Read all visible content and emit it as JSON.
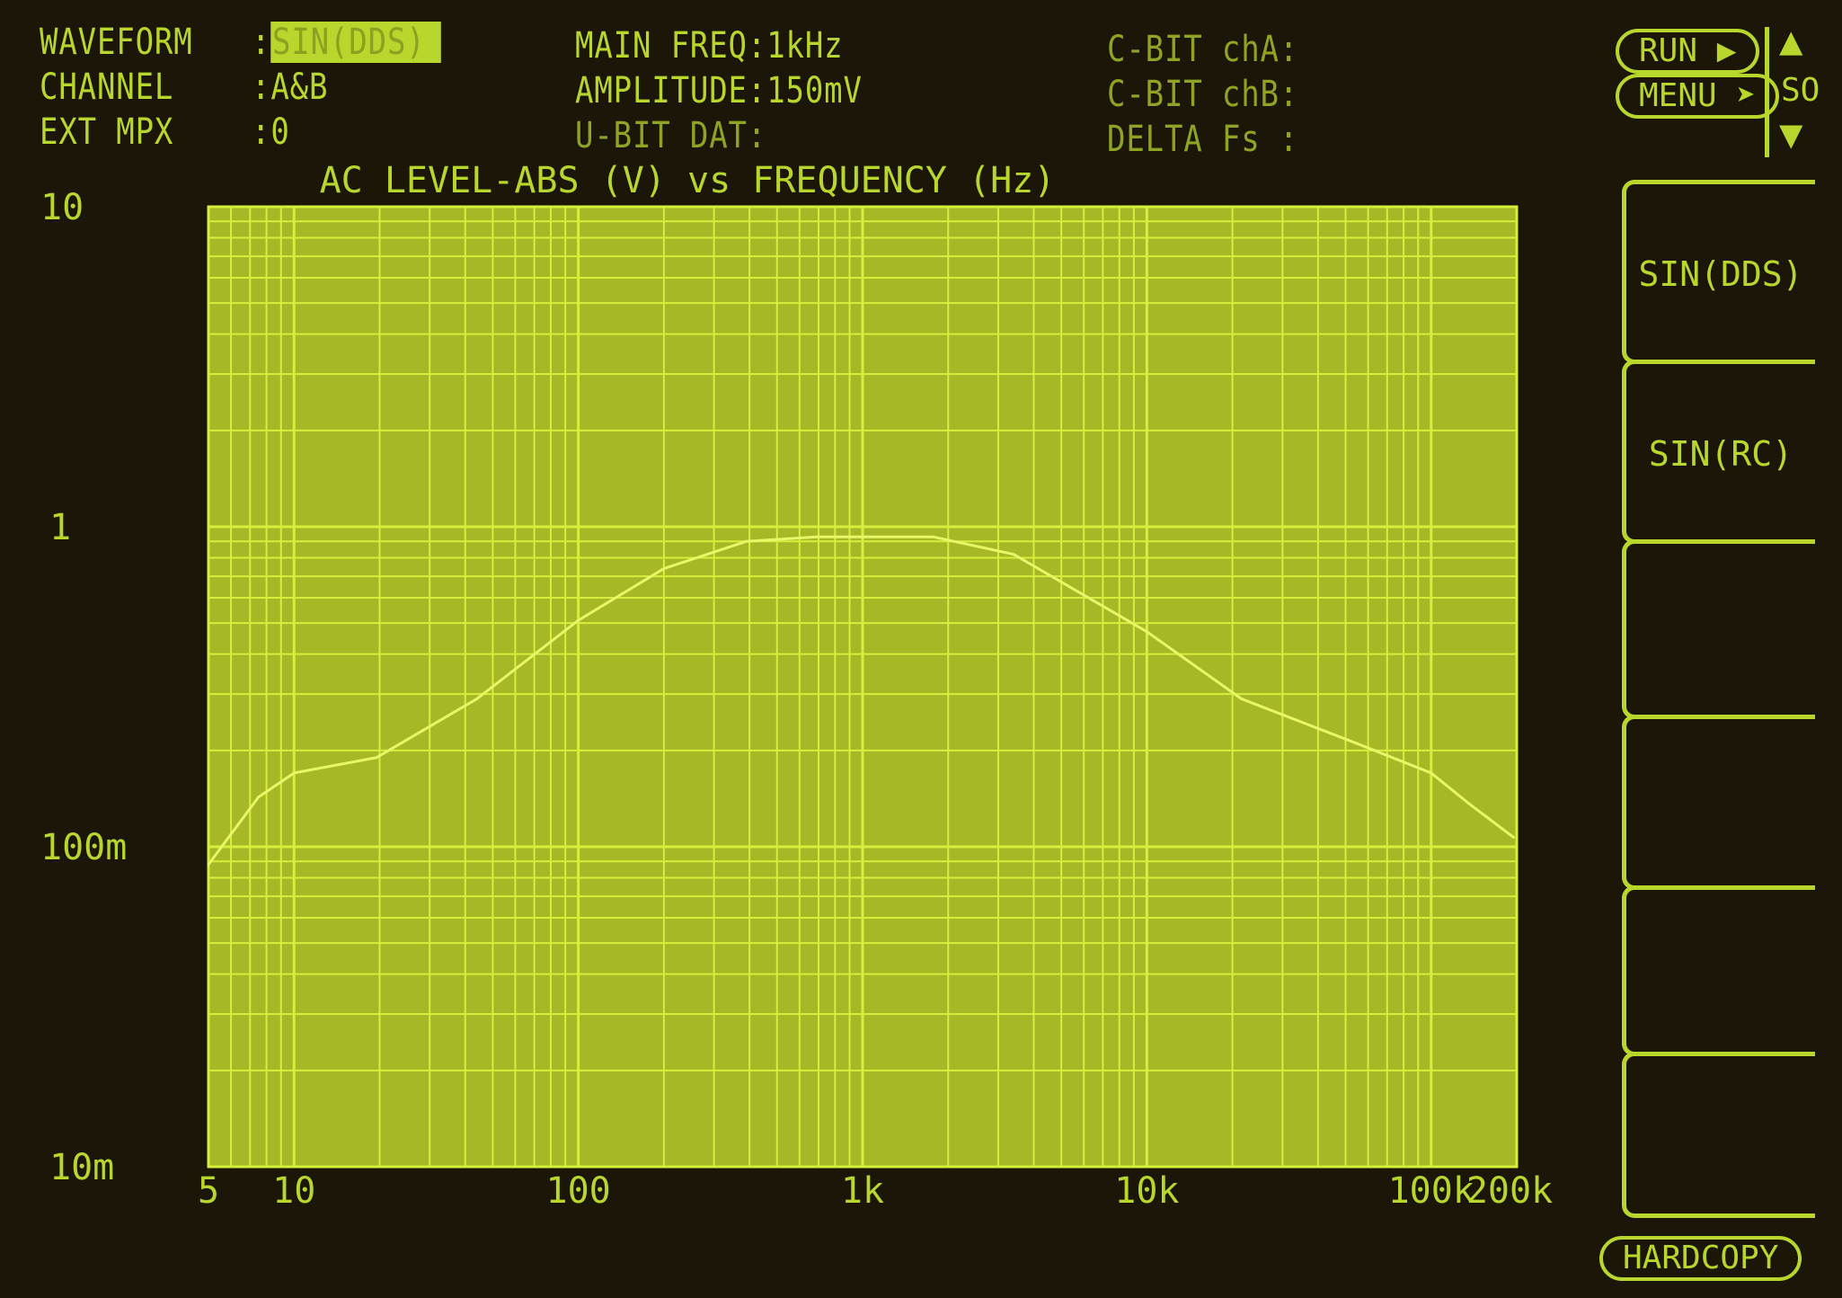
{
  "header": {
    "waveform_label": "WAVEFORM",
    "waveform_value": "SIN(DDS)",
    "channel_label": "CHANNEL",
    "channel_value": "A&B",
    "ext_mpx_label": "EXT MPX",
    "ext_mpx_value": "0",
    "main_freq": "MAIN FREQ:1kHz",
    "amplitude": "AMPLITUDE:150mV",
    "ubit": "U-BIT DAT:",
    "cbit_a": "C-BIT chA:",
    "cbit_b": "C-BIT chB:",
    "delta_fs": "DELTA Fs :"
  },
  "controls": {
    "run": "RUN",
    "menu": "MENU",
    "scroll": "SO",
    "hardcopy": "HARDCOPY"
  },
  "softkeys": [
    "SIN(DDS)",
    "SIN(RC)",
    "",
    "",
    "",
    ""
  ],
  "colors": {
    "phosphor": "#b9d62c",
    "plot_bg": "#a7b826",
    "grid": "#d6ef3c",
    "background": "#1b1608"
  },
  "chart_data": {
    "type": "line",
    "title": "AC LEVEL-ABS (V) vs FREQUENCY (Hz)",
    "xscale": "log",
    "yscale": "log",
    "xlim": [
      5,
      200000
    ],
    "ylim": [
      0.01,
      10
    ],
    "grid": true,
    "xticks": [
      5,
      10,
      100,
      1000,
      10000,
      100000,
      200000
    ],
    "xtick_labels": [
      "5",
      "10",
      "100",
      "1k",
      "10k",
      "100k",
      "200k"
    ],
    "yticks": [
      10,
      1,
      0.1,
      0.01
    ],
    "ytick_labels": [
      "10",
      "1",
      "100m",
      "10m"
    ],
    "series": [
      {
        "x": [
          5,
          7.5,
          10,
          19.5,
          44,
          100,
          200,
          390,
          690,
          1000,
          1770,
          3400,
          10000,
          21500,
          55000,
          100000,
          135000,
          195000
        ],
        "y": [
          0.088,
          0.143,
          0.17,
          0.19,
          0.29,
          0.51,
          0.74,
          0.9,
          0.93,
          0.93,
          0.93,
          0.82,
          0.47,
          0.29,
          0.21,
          0.17,
          0.137,
          0.107
        ]
      }
    ]
  }
}
